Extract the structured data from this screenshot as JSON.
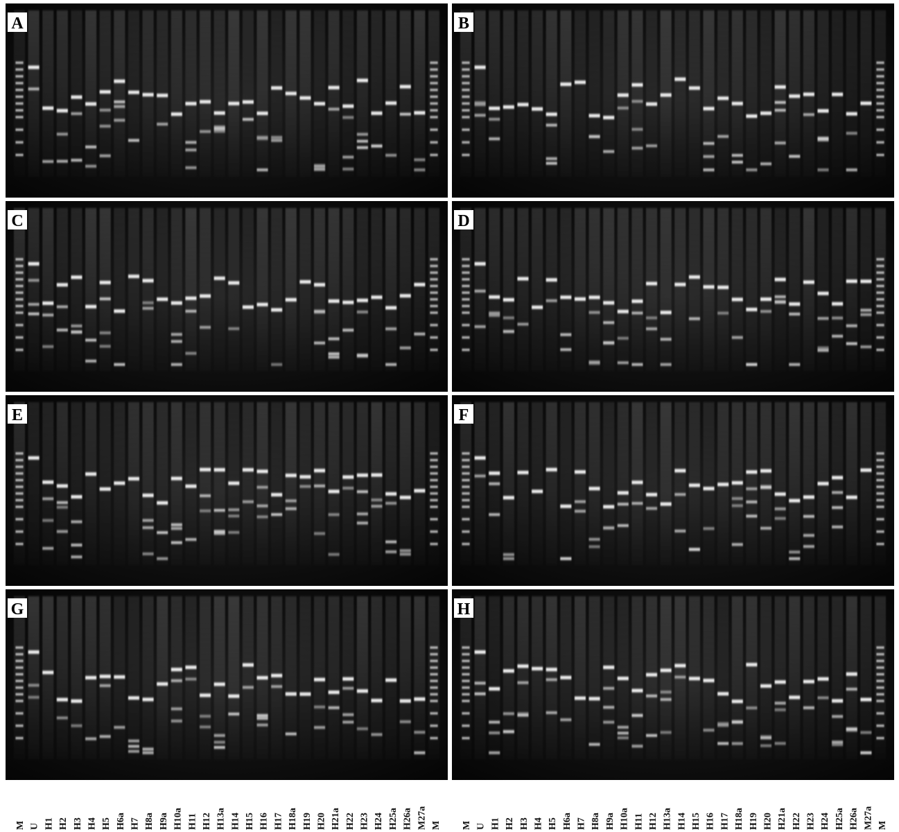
{
  "panels": [
    {
      "label": "A"
    },
    {
      "label": "B"
    },
    {
      "label": "C"
    },
    {
      "label": "D"
    },
    {
      "label": "E"
    },
    {
      "label": "F"
    },
    {
      "label": "G"
    },
    {
      "label": "H"
    }
  ],
  "lane_labels_left": [
    "M",
    "U",
    "H1",
    "H2",
    "H3",
    "H4",
    "H5",
    "H6a",
    "H7",
    "H8a",
    "H9a",
    "H10a",
    "H11",
    "H12",
    "H13a",
    "H14",
    "H15",
    "H16",
    "H17",
    "H18a",
    "H19",
    "H20",
    "H21a",
    "H22",
    "H23",
    "H24",
    "H25a",
    "H26a",
    "M27a",
    "M"
  ],
  "lane_labels_right": [
    "M",
    "U",
    "H1",
    "H2",
    "H3",
    "H4",
    "H5",
    "H6a",
    "H7",
    "H8a",
    "H9a",
    "H10a",
    "H11",
    "H12",
    "H13a",
    "H14",
    "H15",
    "H16",
    "H17",
    "H18a",
    "H19",
    "H20",
    "H21a",
    "H22",
    "H23",
    "H24",
    "H25a",
    "H26a",
    "M27a",
    "M"
  ]
}
